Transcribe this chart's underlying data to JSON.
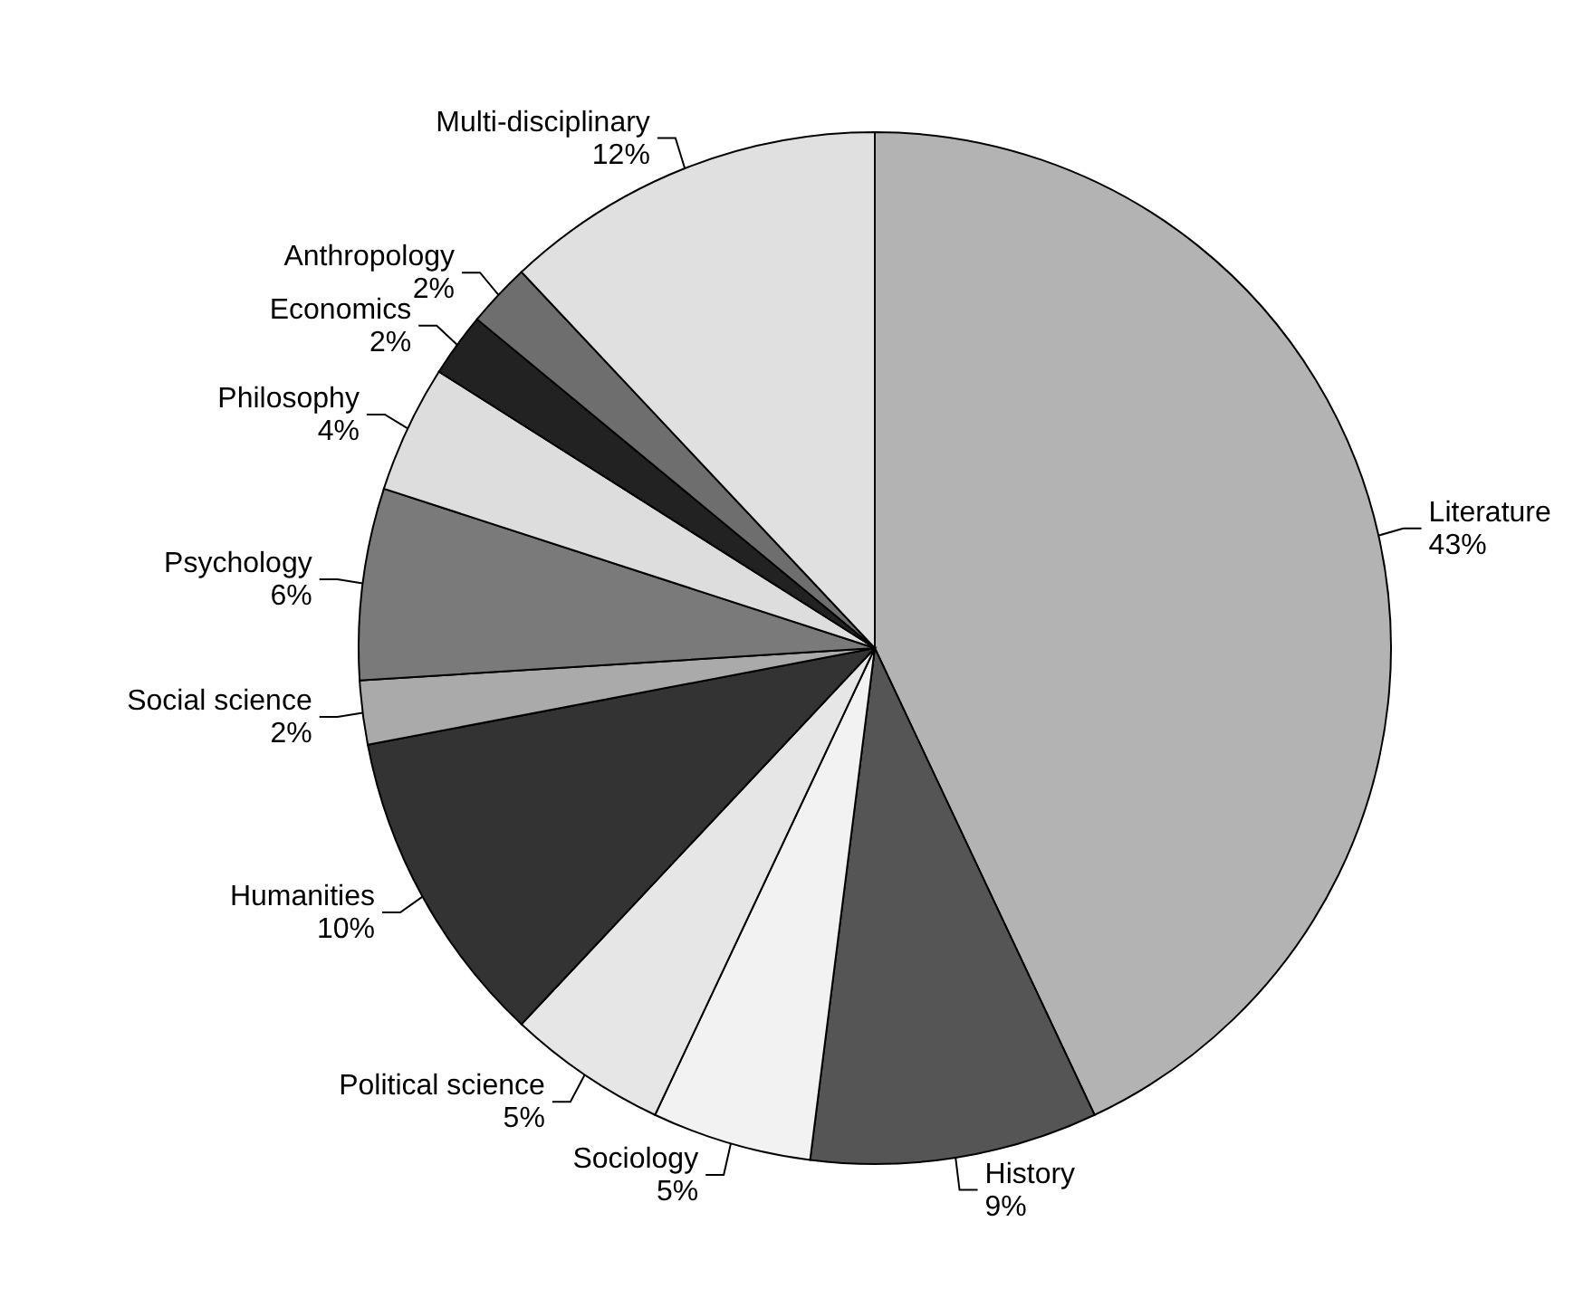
{
  "chart_data": {
    "type": "pie",
    "categories": [
      "Literature",
      "History",
      "Sociology",
      "Political science",
      "Humanities",
      "Social science",
      "Psychology",
      "Philosophy",
      "Economics",
      "Anthropology",
      "Multi-disciplinary"
    ],
    "values": [
      43,
      9,
      5,
      5,
      10,
      2,
      6,
      4,
      2,
      2,
      12
    ],
    "value_labels": [
      "43%",
      "9%",
      "5%",
      "5%",
      "10%",
      "2%",
      "6%",
      "4%",
      "2%",
      "2%",
      "12%"
    ],
    "colors": [
      "#b3b3b3",
      "#555555",
      "#f2f2f2",
      "#e6e6e6",
      "#333333",
      "#aaaaaa",
      "#7a7a7a",
      "#dddddd",
      "#222222",
      "#6e6e6e",
      "#e0e0e0"
    ],
    "legend": false
  }
}
